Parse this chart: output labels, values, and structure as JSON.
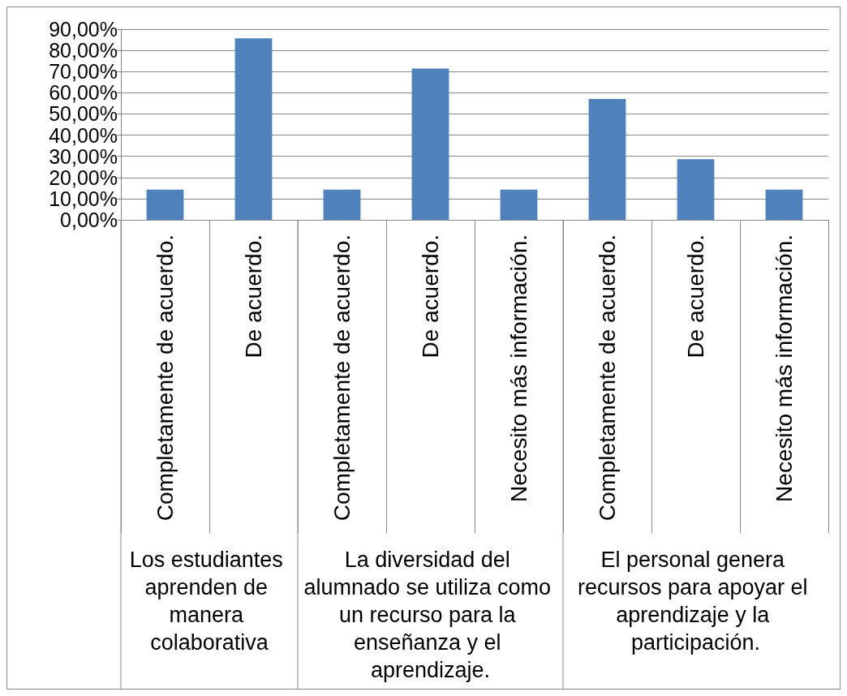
{
  "chart_data": {
    "type": "bar",
    "categories": [
      "Completamente de acuerdo.",
      "De acuerdo.",
      "Completamente de acuerdo.",
      "De acuerdo.",
      "Necesito más información.",
      "Completamente de acuerdo.",
      "De acuerdo.",
      "Necesito más información."
    ],
    "values": [
      14.3,
      85.7,
      14.3,
      71.4,
      14.3,
      57.1,
      28.6,
      14.3
    ],
    "color": "#4f81bd",
    "ylim": [
      0,
      90
    ],
    "yticks": [
      {
        "value": 0,
        "label": "0,00%"
      },
      {
        "value": 10,
        "label": "10,00%"
      },
      {
        "value": 20,
        "label": "20,00%"
      },
      {
        "value": 30,
        "label": "30,00%"
      },
      {
        "value": 40,
        "label": "40,00%"
      },
      {
        "value": 50,
        "label": "50,00%"
      },
      {
        "value": 60,
        "label": "60,00%"
      },
      {
        "value": 70,
        "label": "70,00%"
      },
      {
        "value": 80,
        "label": "80,00%"
      },
      {
        "value": 90,
        "label": "90,00%"
      }
    ],
    "grid": "y",
    "annotations": [
      "Los estudiantes aprenden de manera colaborativa",
      "La diversidad del alumnado se utiliza como un recurso para la enseñanza y el aprendizaje.",
      "El personal genera recursos para apoyar el aprendizaje y la participación."
    ]
  }
}
